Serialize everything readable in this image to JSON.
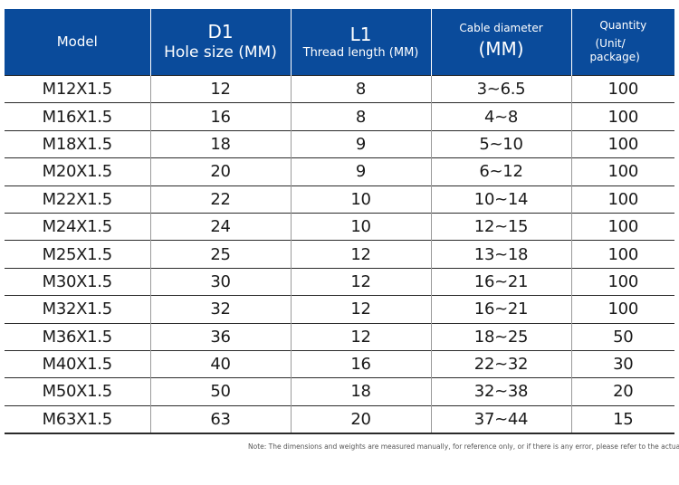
{
  "header": {
    "model": "Model",
    "d1_title": "D1",
    "d1_sub": "Hole size (MM)",
    "l1_title": "L1",
    "l1_sub": "Thread length (MM)",
    "cable_title": "Cable diameter",
    "cable_sub": "(MM)",
    "qty_title": "Quantity",
    "qty_sub1": "(Unit/",
    "qty_sub2": "package)"
  },
  "rows": [
    {
      "model": "M12X1.5",
      "d1": "12",
      "l1": "8",
      "cable": "3~6.5",
      "qty": "100"
    },
    {
      "model": "M16X1.5",
      "d1": "16",
      "l1": "8",
      "cable": "4~8",
      "qty": "100"
    },
    {
      "model": "M18X1.5",
      "d1": "18",
      "l1": "9",
      "cable": "5~10",
      "qty": "100"
    },
    {
      "model": "M20X1.5",
      "d1": "20",
      "l1": "9",
      "cable": "6~12",
      "qty": "100"
    },
    {
      "model": "M22X1.5",
      "d1": "22",
      "l1": "10",
      "cable": "10~14",
      "qty": "100"
    },
    {
      "model": "M24X1.5",
      "d1": "24",
      "l1": "10",
      "cable": "12~15",
      "qty": "100"
    },
    {
      "model": "M25X1.5",
      "d1": "25",
      "l1": "12",
      "cable": "13~18",
      "qty": "100"
    },
    {
      "model": "M30X1.5",
      "d1": "30",
      "l1": "12",
      "cable": "16~21",
      "qty": "100"
    },
    {
      "model": "M32X1.5",
      "d1": "32",
      "l1": "12",
      "cable": "16~21",
      "qty": "100"
    },
    {
      "model": "M36X1.5",
      "d1": "36",
      "l1": "12",
      "cable": "18~25",
      "qty": "50"
    },
    {
      "model": "M40X1.5",
      "d1": "40",
      "l1": "16",
      "cable": "22~32",
      "qty": "30"
    },
    {
      "model": "M50X1.5",
      "d1": "50",
      "l1": "18",
      "cable": "32~38",
      "qty": "20"
    },
    {
      "model": "M63X1.5",
      "d1": "63",
      "l1": "20",
      "cable": "37~44",
      "qty": "15"
    }
  ],
  "note": "Note: The dimensions and weights are measured manually, for reference only, or if there is any error, please refer to the actual object.",
  "colors": {
    "header_bg": "#0a4b9b",
    "header_text": "#ffffff"
  }
}
